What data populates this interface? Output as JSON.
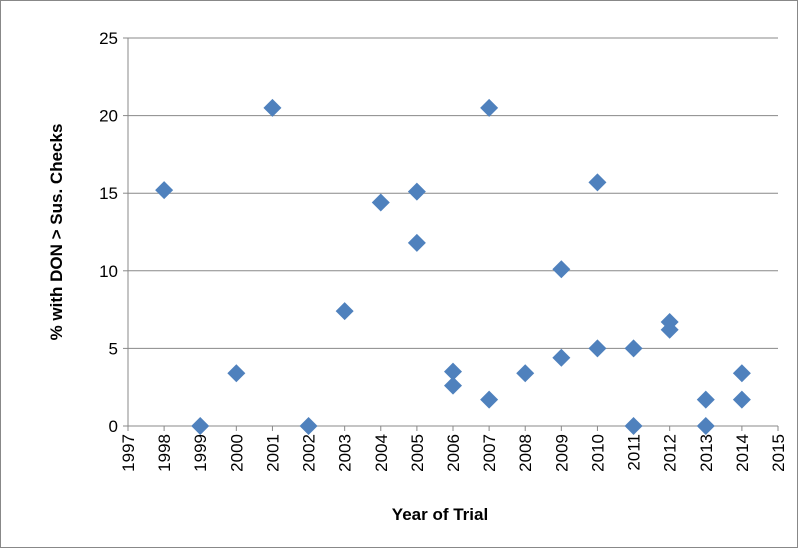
{
  "chart_data": {
    "type": "scatter",
    "x_label": "Year of Trial",
    "y_label": "% with DON > Sus. Checks",
    "x": [
      1998,
      1999,
      2000,
      2001,
      2002,
      2003,
      2004,
      2005,
      2005,
      2006,
      2006,
      2007,
      2007,
      2008,
      2009,
      2009,
      2010,
      2010,
      2011,
      2011,
      2012,
      2012,
      2013,
      2013,
      2014,
      2014
    ],
    "values": [
      15.2,
      0,
      3.4,
      20.5,
      0,
      7.4,
      14.4,
      15.1,
      11.8,
      3.5,
      2.6,
      20.5,
      1.7,
      3.4,
      10.1,
      4.4,
      15.7,
      5.0,
      5.0,
      0,
      6.7,
      6.2,
      1.7,
      0,
      3.4,
      1.7
    ],
    "color": "#4f81bd",
    "xlim": [
      1997,
      2015
    ],
    "xticks": [
      1997,
      1998,
      1999,
      2000,
      2001,
      2002,
      2003,
      2004,
      2005,
      2006,
      2007,
      2008,
      2009,
      2010,
      2011,
      2012,
      2013,
      2014,
      2015
    ],
    "ylim": [
      0,
      25
    ],
    "yticks": [
      0,
      5,
      10,
      15,
      20,
      25
    ],
    "grid": true
  }
}
